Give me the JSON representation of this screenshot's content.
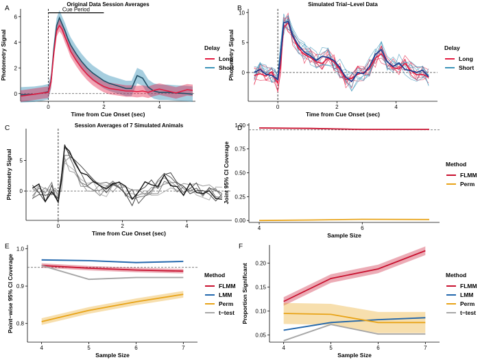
{
  "colors": {
    "long": "#e31a40",
    "short": "#3a93b8",
    "flmm": "#c8102e",
    "lmm": "#2166ac",
    "perm": "#e8a317",
    "ttest": "#a6a6a6",
    "grey": "#808080",
    "black": "#111111"
  },
  "chart_data": [
    {
      "id": "A",
      "panel_label": "A",
      "type": "line",
      "title": "Original Data Session Averages",
      "xlabel": "Time from Cue Onset (sec)",
      "ylabel": "Photometry Signal",
      "xlim": [
        -1,
        5.3
      ],
      "ylim": [
        -0.6,
        6.6
      ],
      "xticks": [
        0,
        2,
        4
      ],
      "yticks": [
        0,
        2,
        4,
        6
      ],
      "xtick_labels": [
        "0",
        "2",
        "4"
      ],
      "ytick_labels": [
        "0",
        "2",
        "4",
        "6"
      ],
      "hline": 0,
      "vline": 0,
      "cue_period": {
        "label": "Cue Period",
        "x0": 0,
        "x1": 2,
        "y": 6.3
      },
      "legend": {
        "title": "Delay",
        "items": [
          "Long",
          "Short"
        ]
      },
      "series": [
        {
          "name": "Long",
          "color_key": "long",
          "band": 0.45,
          "x": [
            -1,
            -0.5,
            -0.2,
            0,
            0.1,
            0.2,
            0.3,
            0.4,
            0.5,
            0.6,
            0.7,
            0.8,
            1.0,
            1.2,
            1.4,
            1.6,
            1.8,
            2.0,
            2.2,
            2.5,
            2.8,
            3.0,
            3.2,
            3.4,
            3.6,
            3.8,
            4.0,
            4.3,
            4.6,
            5.0,
            5.2
          ],
          "y": [
            -0.2,
            -0.05,
            0.05,
            0.1,
            0.9,
            3.2,
            4.9,
            5.3,
            5.0,
            4.4,
            3.9,
            3.3,
            2.6,
            2.0,
            1.5,
            1.1,
            0.8,
            0.55,
            0.4,
            0.3,
            0.2,
            0.2,
            0.15,
            0.2,
            0.1,
            0.25,
            0.35,
            0.2,
            0.05,
            0.3,
            0.25
          ]
        },
        {
          "name": "Short",
          "color_key": "short",
          "band": 0.6,
          "x": [
            -1,
            -0.5,
            -0.2,
            0,
            0.1,
            0.2,
            0.3,
            0.4,
            0.5,
            0.6,
            0.7,
            0.8,
            1.0,
            1.2,
            1.4,
            1.6,
            1.8,
            2.0,
            2.2,
            2.5,
            2.8,
            3.0,
            3.2,
            3.4,
            3.6,
            3.8,
            4.0,
            4.3,
            4.6,
            5.0,
            5.2
          ],
          "y": [
            -0.1,
            -0.05,
            0.05,
            0.15,
            1.0,
            3.5,
            5.3,
            5.9,
            5.4,
            4.9,
            4.3,
            3.8,
            3.1,
            2.5,
            2.0,
            1.6,
            1.3,
            1.0,
            0.8,
            0.6,
            0.4,
            0.4,
            1.4,
            1.2,
            0.5,
            0.2,
            0.1,
            0.1,
            0.05,
            0.0,
            -0.05
          ]
        }
      ]
    },
    {
      "id": "B",
      "panel_label": "B",
      "type": "line",
      "title": "Simulated Trial−Level Data",
      "xlabel": "Time from Cue Onset (sec)",
      "ylabel": "Photometry Signal",
      "xlim": [
        -1,
        5.4
      ],
      "ylim": [
        -4.8,
        10.6
      ],
      "xticks": [
        0,
        2,
        4
      ],
      "yticks": [
        0,
        5,
        10
      ],
      "xtick_labels": [
        "0",
        "2",
        "4"
      ],
      "ytick_labels": [
        "0",
        "5",
        "10"
      ],
      "hline": 0,
      "vline": 0,
      "legend": {
        "title": "Delay",
        "items": [
          "Long",
          "Short"
        ]
      },
      "x_grid": [
        -0.8,
        -0.6,
        -0.4,
        -0.2,
        -0.1,
        0,
        0.1,
        0.2,
        0.35,
        0.5,
        0.7,
        0.9,
        1.1,
        1.3,
        1.5,
        1.7,
        1.9,
        2.1,
        2.3,
        2.5,
        2.7,
        2.9,
        3.1,
        3.3,
        3.5,
        3.7,
        3.9,
        4.1,
        4.3,
        4.5,
        4.7,
        4.9,
        5.1
      ],
      "mean_long": [
        -0.5,
        -0.2,
        -0.6,
        0.1,
        -1.0,
        -1.8,
        2.0,
        7.5,
        8.3,
        6.0,
        4.0,
        3.0,
        2.5,
        1.8,
        1.5,
        2.4,
        1.7,
        0.5,
        -1.2,
        -1.0,
        -0.3,
        0.0,
        0.6,
        2.4,
        3.1,
        1.8,
        0.8,
        0.6,
        1.5,
        0.3,
        -0.4,
        -0.3,
        -0.8
      ],
      "mean_short": [
        0.0,
        0.5,
        -0.3,
        -0.5,
        -0.8,
        -1.2,
        3.0,
        8.3,
        8.5,
        6.2,
        4.5,
        3.4,
        2.8,
        2.0,
        2.7,
        2.5,
        2.0,
        0.8,
        -0.8,
        -1.5,
        0.0,
        -0.2,
        1.0,
        3.0,
        3.8,
        1.8,
        1.0,
        1.6,
        0.5,
        0.3,
        0.0,
        0.4,
        -0.7
      ],
      "n_trials": 6,
      "trial_spread": 1.6
    },
    {
      "id": "C",
      "panel_label": "C",
      "type": "line",
      "title": "Session Averages of 7 Simulated Animals",
      "xlabel": "Time from Cue Onset (sec)",
      "ylabel": "Photometry Signal",
      "xlim": [
        -1,
        5.4
      ],
      "ylim": [
        -4.8,
        10.2
      ],
      "xticks": [
        0,
        2,
        4
      ],
      "yticks": [
        0,
        5
      ],
      "xtick_labels": [
        "0",
        "2",
        "4"
      ],
      "ytick_labels": [
        "0",
        "5"
      ],
      "hline": 0,
      "vline": 0,
      "x_grid": [
        -0.8,
        -0.6,
        -0.4,
        -0.2,
        -0.1,
        0,
        0.1,
        0.2,
        0.35,
        0.5,
        0.7,
        0.9,
        1.1,
        1.3,
        1.5,
        1.7,
        1.9,
        2.1,
        2.3,
        2.5,
        2.7,
        2.9,
        3.1,
        3.3,
        3.5,
        3.7,
        3.9,
        4.1,
        4.3,
        4.5,
        4.7,
        4.9,
        5.1
      ],
      "base": [
        -0.2,
        0.2,
        -0.5,
        0.3,
        -0.9,
        -1.3,
        1.8,
        6.2,
        6.0,
        4.0,
        2.5,
        1.8,
        1.2,
        0.6,
        0.4,
        0.7,
        0.3,
        -0.3,
        -1.0,
        -0.8,
        0.2,
        0.5,
        0.8,
        1.8,
        1.6,
        1.0,
        0.4,
        0.3,
        0.6,
        0.2,
        -0.3,
        -0.4,
        -0.6
      ],
      "n_animals": 7
    },
    {
      "id": "D",
      "panel_label": "D",
      "type": "line",
      "title": "",
      "xlabel": "Sample Size",
      "ylabel": "Joint 95% CI Coverage",
      "xlim": [
        3.8,
        7.5
      ],
      "ylim": [
        -0.02,
        1.02
      ],
      "xticks": [
        4,
        6
      ],
      "yticks": [
        0.0,
        0.25,
        0.5,
        0.75,
        1.0
      ],
      "xtick_labels": [
        "4",
        "6"
      ],
      "ytick_labels": [
        "0.00",
        "0.25",
        "0.50",
        "0.75",
        "1.00"
      ],
      "hline": 0.95,
      "legend": {
        "title": "Method",
        "items": [
          "FLMM",
          "Perm"
        ]
      },
      "series": [
        {
          "name": "FLMM",
          "color_key": "flmm",
          "x": [
            4,
            5,
            6,
            7.3
          ],
          "values": [
            0.97,
            0.965,
            0.955,
            0.955
          ],
          "band": 0.006
        },
        {
          "name": "Perm",
          "color_key": "perm",
          "x": [
            4,
            5,
            6,
            7.3
          ],
          "values": [
            0.0,
            0.005,
            0.012,
            0.01
          ],
          "band": 0.004
        }
      ]
    },
    {
      "id": "E",
      "panel_label": "E",
      "type": "line",
      "title": "",
      "xlabel": "Sample Size",
      "ylabel": "Point−wise 95% CI Coverage",
      "xlim": [
        3.7,
        7.3
      ],
      "ylim": [
        0.75,
        1.01
      ],
      "xticks": [
        4,
        5,
        6,
        7
      ],
      "yticks": [
        0.8,
        0.9,
        1.0
      ],
      "xtick_labels": [
        "4",
        "5",
        "6",
        "7"
      ],
      "ytick_labels": [
        "0.8",
        "0.9",
        "1.0"
      ],
      "hline": 0.95,
      "legend": {
        "title": "Method",
        "items": [
          "FLMM",
          "LMM",
          "Perm",
          "t−test"
        ]
      },
      "series": [
        {
          "name": "FLMM",
          "color_key": "flmm",
          "x": [
            4,
            5,
            6,
            7
          ],
          "values": [
            0.955,
            0.948,
            0.943,
            0.94
          ],
          "band": 0.006
        },
        {
          "name": "LMM",
          "color_key": "lmm",
          "x": [
            4,
            5,
            6,
            7
          ],
          "values": [
            0.97,
            0.968,
            0.963,
            0.966
          ],
          "band": 0.002
        },
        {
          "name": "Perm",
          "color_key": "perm",
          "x": [
            4,
            5,
            6,
            7
          ],
          "values": [
            0.805,
            0.835,
            0.858,
            0.878
          ],
          "band": 0.009
        },
        {
          "name": "t−test",
          "color_key": "ttest",
          "x": [
            4,
            5,
            6,
            7
          ],
          "values": [
            0.955,
            0.918,
            0.923,
            0.923
          ],
          "band": 0.002
        }
      ]
    },
    {
      "id": "F",
      "panel_label": "F",
      "type": "line",
      "title": "",
      "xlabel": "Sample Size",
      "ylabel": "Proportion Significant",
      "xlim": [
        3.7,
        7.3
      ],
      "ylim": [
        0.035,
        0.238
      ],
      "xticks": [
        4,
        5,
        6,
        7
      ],
      "yticks": [
        0.05,
        0.1,
        0.15,
        0.2
      ],
      "xtick_labels": [
        "4",
        "5",
        "6",
        "7"
      ],
      "ytick_labels": [
        "0.05",
        "0.10",
        "0.15",
        "0.20"
      ],
      "legend": {
        "title": "Method",
        "items": [
          "FLMM",
          "LMM",
          "Perm",
          "t−test"
        ]
      },
      "series": [
        {
          "name": "FLMM",
          "color_key": "flmm",
          "x": [
            4,
            5,
            6,
            7
          ],
          "values": [
            0.12,
            0.168,
            0.188,
            0.226
          ],
          "band": 0.009
        },
        {
          "name": "LMM",
          "color_key": "lmm",
          "x": [
            4,
            5,
            6,
            7
          ],
          "values": [
            0.06,
            0.076,
            0.082,
            0.086
          ],
          "band": 0.0015
        },
        {
          "name": "Perm",
          "color_key": "perm",
          "x": [
            4,
            5,
            6,
            7
          ],
          "values": [
            0.095,
            0.093,
            0.076,
            0.076
          ],
          "band": 0.022
        },
        {
          "name": "t−test",
          "color_key": "ttest",
          "x": [
            4,
            5,
            6,
            7
          ],
          "values": [
            0.038,
            0.072,
            0.052,
            0.052
          ],
          "band": 0.0015
        }
      ]
    }
  ]
}
